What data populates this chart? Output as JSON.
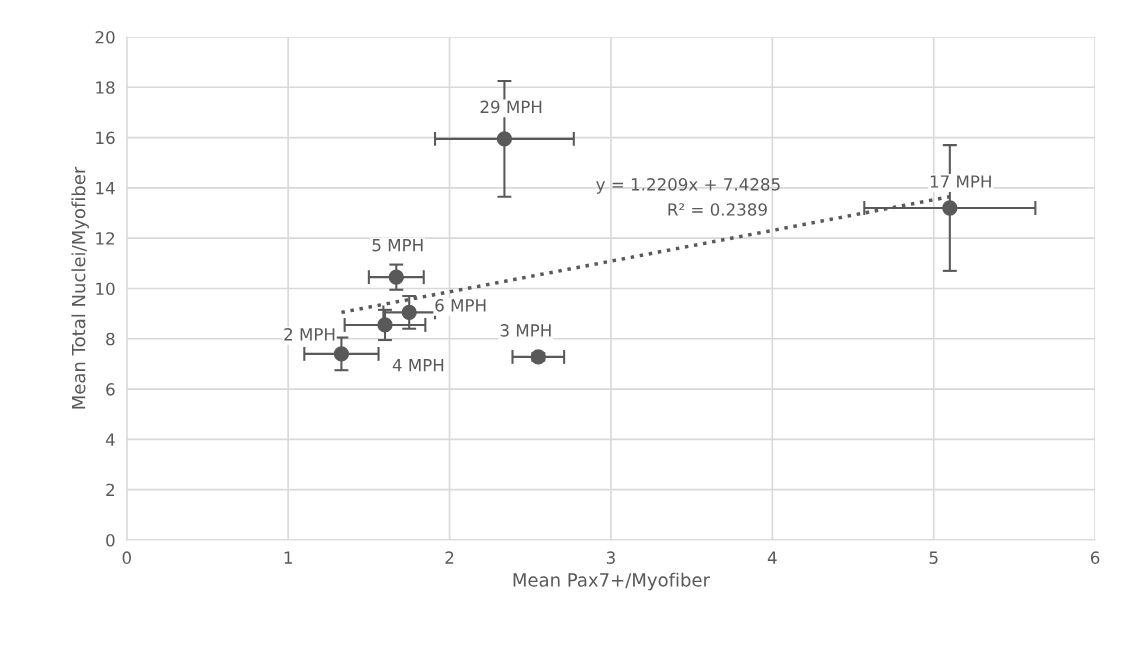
{
  "chart_data": {
    "type": "scatter",
    "xlabel": "Mean Pax7+/Myofiber",
    "ylabel": "Mean Total Nuclei/Myofiber",
    "xlim": [
      0,
      6
    ],
    "xticks": [
      0,
      1,
      2,
      3,
      4,
      5,
      6
    ],
    "ylim": [
      0,
      20
    ],
    "yticks": [
      0,
      2,
      4,
      6,
      8,
      10,
      12,
      14,
      16,
      18,
      20
    ],
    "grid": true,
    "legend": false,
    "marker": "circle",
    "series": [
      {
        "color": "#595959",
        "x": [
          2.34,
          5.1,
          1.67,
          1.75,
          1.6,
          1.33,
          2.55
        ],
        "values": [
          15.95,
          13.2,
          10.45,
          9.05,
          8.55,
          7.4,
          7.28
        ],
        "errors": [
          2.3,
          2.5,
          0.5,
          0.65,
          0.6,
          0.65,
          0.15
        ],
        "xerrors": [
          0.43,
          0.53,
          0.17,
          0.16,
          0.25,
          0.23,
          0.16
        ]
      },
      {
        "type": "line",
        "color": "#595959",
        "line_style": "dotted",
        "marker": "none",
        "x": [
          1.33,
          5.1
        ],
        "values": [
          9.05,
          13.65
        ]
      }
    ],
    "annotations": [
      {
        "text": "29 MPH",
        "x": 2.34,
        "y": 15.95
      },
      {
        "text": "17 MPH",
        "x": 5.1,
        "y": 13.2
      },
      {
        "text": "5 MPH",
        "x": 1.67,
        "y": 10.45
      },
      {
        "text": "6 MPH",
        "x": 1.75,
        "y": 9.05
      },
      {
        "text": "4 MPH",
        "x": 1.6,
        "y": 8.55
      },
      {
        "text": "2 MPH",
        "x": 1.33,
        "y": 7.4
      },
      {
        "text": "3 MPH",
        "x": 2.55,
        "y": 7.28
      },
      "y = 1.2209x + 7.4285",
      "R² = 0.2389"
    ]
  }
}
